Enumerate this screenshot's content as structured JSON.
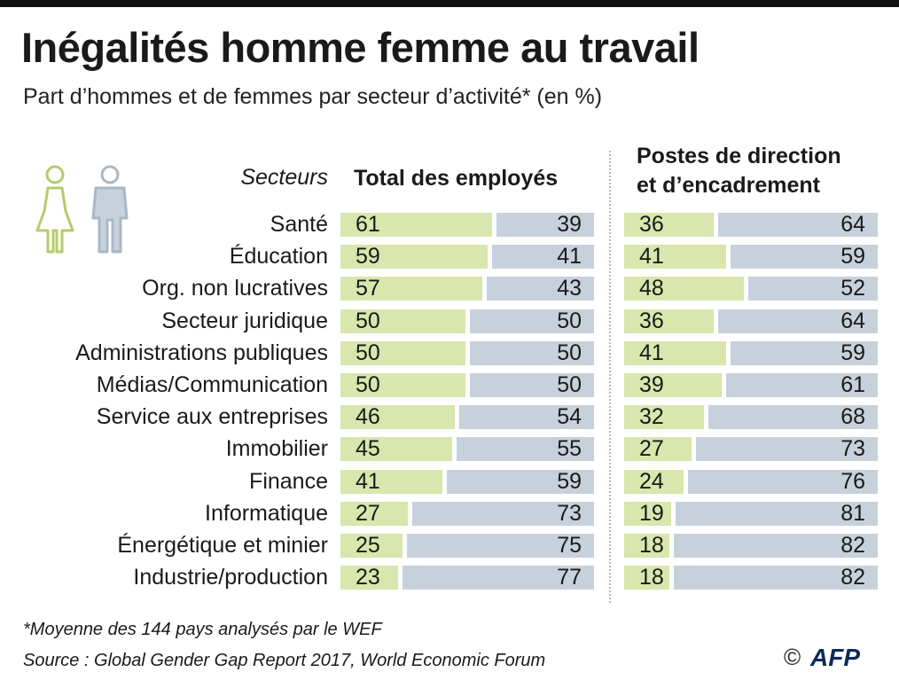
{
  "title": "Inégalités homme femme au travail",
  "subtitle": "Part d’hommes et de femmes par secteur d’activité* (en %)",
  "footnote": "*Moyenne des 144 pays analysés par le WEF",
  "source": "Source : Global Gender Gap Report 2017, World Economic Forum",
  "logo": {
    "copyright": "©",
    "text": "AFP"
  },
  "icons": {
    "female": "woman-icon",
    "male": "man-icon"
  },
  "colors": {
    "female": "#d9e6ad",
    "male": "#c6d1db",
    "female_icon": "#b5cc6a",
    "male_icon": "#aab8c6"
  },
  "chart_data": {
    "type": "bar",
    "orientation": "horizontal-stacked",
    "categories_label": "Secteurs",
    "categories": [
      "Santé",
      "Éducation",
      "Org. non lucratives",
      "Secteur juridique",
      "Administrations publiques",
      "Médias/Communication",
      "Service aux entreprises",
      "Immobilier",
      "Finance",
      "Informatique",
      "Énergétique et minier",
      "Industrie/production"
    ],
    "panels": [
      {
        "title": "Total des employés",
        "series": [
          {
            "values": [
              61,
              59,
              57,
              50,
              50,
              50,
              46,
              45,
              41,
              27,
              25,
              23
            ]
          },
          {
            "values": [
              39,
              41,
              43,
              50,
              50,
              50,
              54,
              55,
              59,
              73,
              75,
              77
            ]
          }
        ]
      },
      {
        "title": "Postes de direction et d’encadrement",
        "title_lines": [
          "Postes de direction",
          "et d’encadrement"
        ],
        "series": [
          {
            "values": [
              36,
              41,
              48,
              36,
              41,
              39,
              32,
              27,
              24,
              19,
              18,
              18
            ]
          },
          {
            "values": [
              64,
              59,
              52,
              64,
              59,
              61,
              68,
              73,
              76,
              81,
              82,
              82
            ]
          }
        ]
      }
    ],
    "xlim": [
      0,
      100
    ]
  }
}
